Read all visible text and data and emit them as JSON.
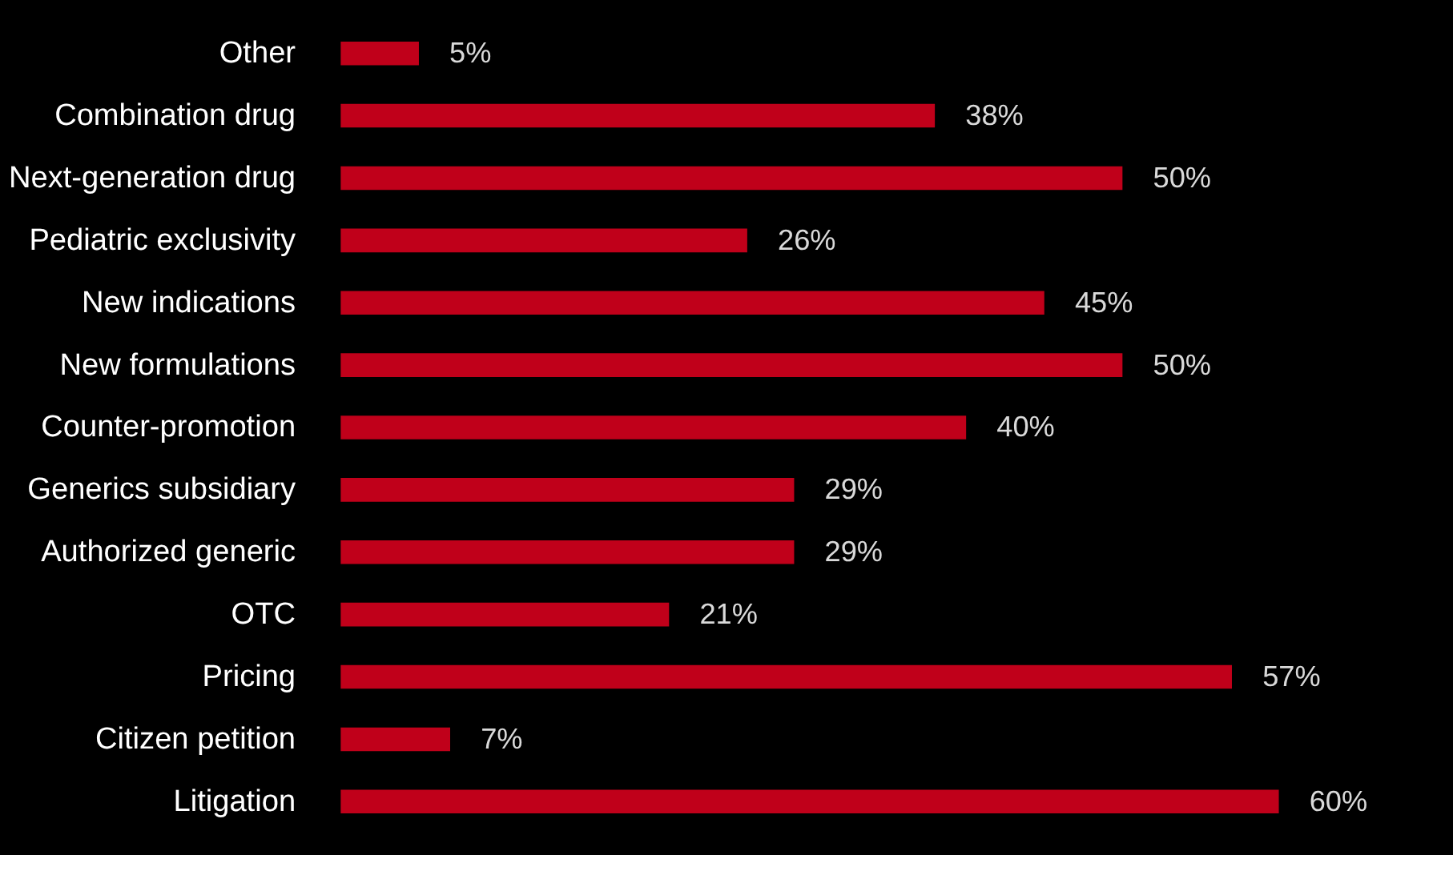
{
  "chart_data": {
    "type": "bar",
    "orientation": "horizontal",
    "categories": [
      "Other",
      "Combination drug",
      "Next-generation drug",
      "Pediatric exclusivity",
      "New indications",
      "New formulations",
      "Counter-promotion",
      "Generics subsidiary",
      "Authorized generic",
      "OTC",
      "Pricing",
      "Citizen petition",
      "Litigation"
    ],
    "values": [
      5,
      38,
      50,
      26,
      45,
      50,
      40,
      29,
      29,
      21,
      57,
      7,
      60
    ],
    "value_labels": [
      "5%",
      "38%",
      "50%",
      "26%",
      "45%",
      "50%",
      "40%",
      "29%",
      "29%",
      "21%",
      "57%",
      "7%",
      "60%"
    ],
    "color": "#c0001a"
  }
}
